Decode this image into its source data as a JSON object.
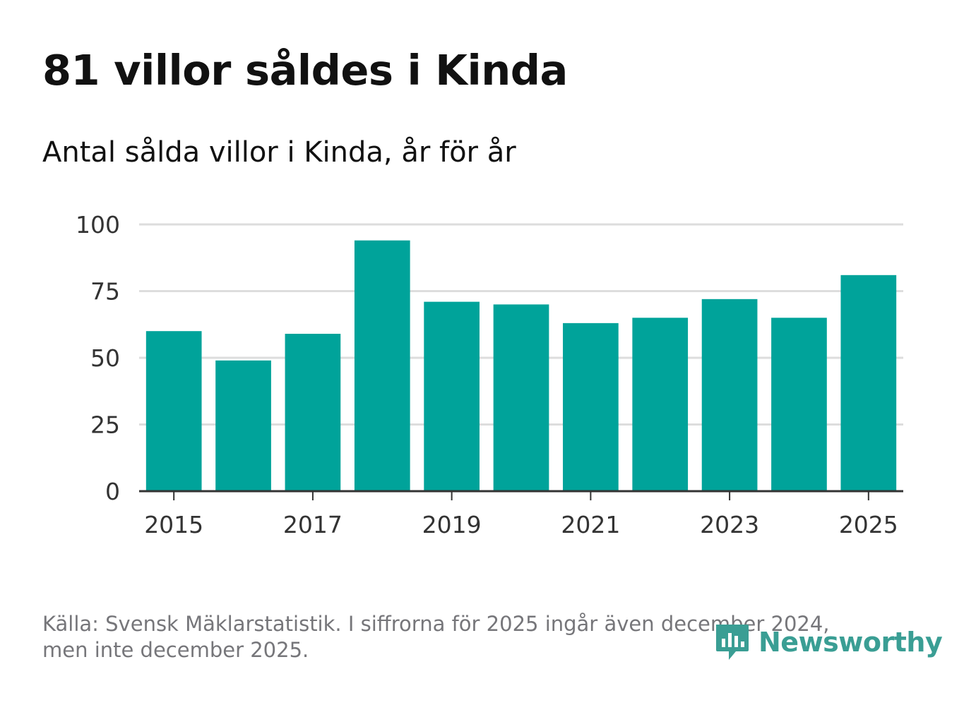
{
  "header": {
    "title": "81 villor såldes i Kinda",
    "subtitle": "Antal sålda villor i Kinda, år för år"
  },
  "footer": {
    "source_line1": "Källa: Svensk Mäklarstatistik. I siffrorna för 2025 ingår även december 2024,",
    "source_line2": "men inte december 2025."
  },
  "brand": {
    "name": "Newsworthy",
    "icon": "newsworthy-logo-icon",
    "color": "#3a9e94"
  },
  "colors": {
    "bar": "#00a39a",
    "grid": "#dddddd",
    "axis": "#333333"
  },
  "chart_data": {
    "type": "bar",
    "title": "Antal sålda villor i Kinda, år för år",
    "categories": [
      "2015",
      "2016",
      "2017",
      "2018",
      "2019",
      "2020",
      "2021",
      "2022",
      "2023",
      "2024",
      "2025"
    ],
    "values": [
      60,
      49,
      59,
      94,
      71,
      70,
      63,
      65,
      72,
      65,
      81
    ],
    "ylim": [
      0,
      100
    ],
    "yticks": [
      0,
      25,
      50,
      75,
      100
    ],
    "xtick_labels": [
      "2015",
      "2017",
      "2019",
      "2021",
      "2023",
      "2025"
    ],
    "xlabel": "",
    "ylabel": "",
    "grid": true,
    "legend": "none"
  }
}
